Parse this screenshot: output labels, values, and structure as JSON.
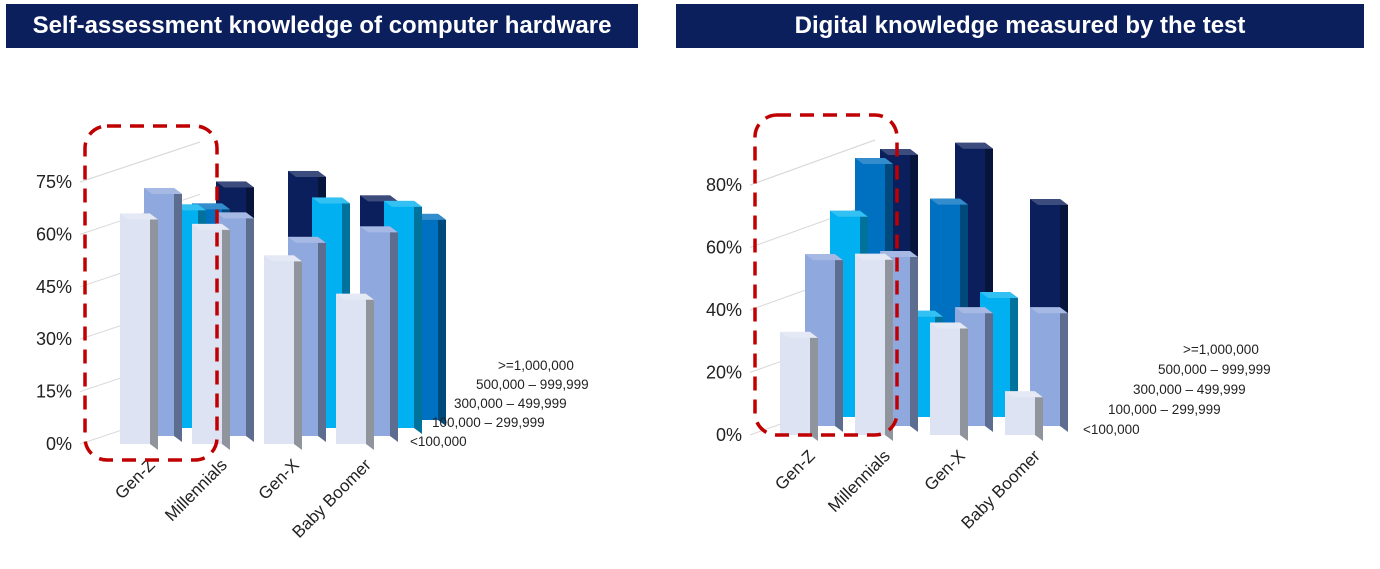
{
  "chart_data": [
    {
      "type": "bar",
      "title": "Self-assessment knowledge of computer hardware",
      "categories": [
        "Gen-Z",
        "Millennials",
        "Gen-X",
        "Baby Boomer"
      ],
      "depth_categories": [
        "<100,000",
        "100,000 – 299,999",
        "300,000 – 499,999",
        "500,000 – 999,999",
        ">=1,000,000"
      ],
      "series": [
        {
          "name": "<100,000",
          "values": [
            66,
            63,
            54,
            43
          ]
        },
        {
          "name": "100,000 – 299,999",
          "values": [
            71,
            64,
            57,
            60
          ]
        },
        {
          "name": "300,000 – 499,999",
          "values": [
            64,
            0,
            66,
            65
          ]
        },
        {
          "name": "500,000 – 999,999",
          "values": [
            62,
            0,
            0,
            59
          ]
        },
        {
          "name": ">=1,000,000",
          "values": [
            66,
            69,
            62,
            0
          ]
        }
      ],
      "yticks": [
        "0%",
        "15%",
        "30%",
        "45%",
        "60%",
        "75%"
      ],
      "ylim": [
        0,
        75
      ],
      "highlight": "Gen-Z"
    },
    {
      "type": "bar",
      "title": "Digital knowledge measured by the test",
      "categories": [
        "Gen-Z",
        "Millennials",
        "Gen-X",
        "Baby Boomer"
      ],
      "depth_categories": [
        "<100,000",
        "100,000 – 299,999",
        "300,000 – 499,999",
        "500,000 – 999,999",
        ">=1,000,000"
      ],
      "series": [
        {
          "name": "<100,000",
          "values": [
            33,
            58,
            36,
            14
          ]
        },
        {
          "name": "100,000 – 299,999",
          "values": [
            55,
            56,
            38,
            38
          ]
        },
        {
          "name": "300,000 – 499,999",
          "values": [
            66,
            34,
            40,
            0
          ]
        },
        {
          "name": "500,000 – 999,999",
          "values": [
            80,
            67,
            0,
            0
          ]
        },
        {
          "name": ">=1,000,000",
          "values": [
            80,
            82,
            64,
            0
          ]
        }
      ],
      "yticks": [
        "0%",
        "20%",
        "40%",
        "60%",
        "80%"
      ],
      "ylim": [
        0,
        80
      ],
      "highlight": "Gen-Z"
    }
  ]
}
